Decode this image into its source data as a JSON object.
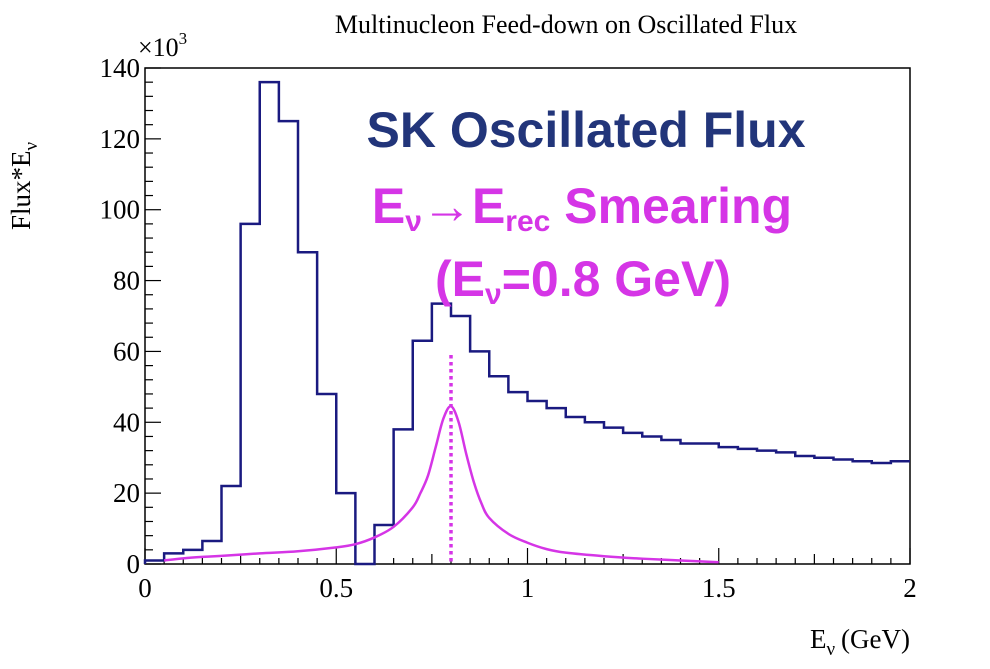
{
  "chart_data": {
    "type": "line",
    "title": "Multinucleon Feed-down on Oscillated Flux",
    "xlabel_main": "E",
    "xlabel_sub": "ν",
    "xlabel_unit": "(GeV)",
    "ylabel_main": "Flux*E",
    "ylabel_sub": "ν",
    "y_multiplier_base": "×10",
    "y_multiplier_exp": "3",
    "xlim": [
      0,
      2
    ],
    "ylim": [
      0,
      140
    ],
    "x_ticks": [
      0,
      0.5,
      1,
      1.5,
      2
    ],
    "x_tick_labels": [
      "0",
      "0.5",
      "1",
      "1.5",
      "2"
    ],
    "y_ticks": [
      0,
      20,
      40,
      60,
      80,
      100,
      120,
      140
    ],
    "y_tick_labels": [
      "0",
      "20",
      "40",
      "60",
      "80",
      "100",
      "120",
      "140"
    ],
    "series": [
      {
        "name": "SK Oscillated Flux",
        "style": "histogram",
        "color": "#1a1a80",
        "bin_width": 0.05,
        "bin_start": 0,
        "values": [
          1,
          3,
          4,
          6.5,
          22,
          96,
          136,
          125,
          88,
          48,
          20,
          0,
          11,
          38,
          63,
          73.5,
          70,
          60,
          53,
          48.5,
          46,
          44,
          41.5,
          40,
          38.5,
          37,
          36,
          35,
          34,
          34,
          33,
          32.5,
          32,
          31.5,
          30.5,
          30,
          29.5,
          29,
          28.5,
          29
        ]
      },
      {
        "name": "Eν→Erec Smearing (Eν=0.8 GeV)",
        "style": "curve",
        "color": "#d535e6",
        "points": [
          [
            0.05,
            1.0
          ],
          [
            0.1,
            1.6
          ],
          [
            0.15,
            2.0
          ],
          [
            0.2,
            2.3
          ],
          [
            0.3,
            3.0
          ],
          [
            0.4,
            3.6
          ],
          [
            0.5,
            4.7
          ],
          [
            0.55,
            5.6
          ],
          [
            0.6,
            7.5
          ],
          [
            0.65,
            10.5
          ],
          [
            0.7,
            16
          ],
          [
            0.72,
            20
          ],
          [
            0.74,
            25
          ],
          [
            0.76,
            33
          ],
          [
            0.78,
            41
          ],
          [
            0.8,
            44.5
          ],
          [
            0.82,
            40
          ],
          [
            0.84,
            31
          ],
          [
            0.86,
            23
          ],
          [
            0.88,
            17
          ],
          [
            0.9,
            13
          ],
          [
            0.95,
            8.5
          ],
          [
            1.0,
            6
          ],
          [
            1.05,
            4.2
          ],
          [
            1.1,
            3.2
          ],
          [
            1.2,
            2.2
          ],
          [
            1.3,
            1.5
          ],
          [
            1.4,
            1.0
          ],
          [
            1.5,
            0.5
          ]
        ]
      }
    ],
    "marker_line": {
      "x": 0.8,
      "y_top": 59,
      "style": "dotted",
      "color": "#d535e6"
    },
    "annotations": [
      {
        "text": "SK Oscillated Flux",
        "color": "#22357a"
      },
      {
        "text_main": "E",
        "text_sub": "ν",
        "arrow": "→",
        "text_main2": "E",
        "text_sub2": "rec",
        "text_rest": " Smearing",
        "color": "#d535e6"
      },
      {
        "open": "(E",
        "sub": "ν",
        "rest": "=0.8 GeV)",
        "color": "#d535e6"
      }
    ]
  }
}
